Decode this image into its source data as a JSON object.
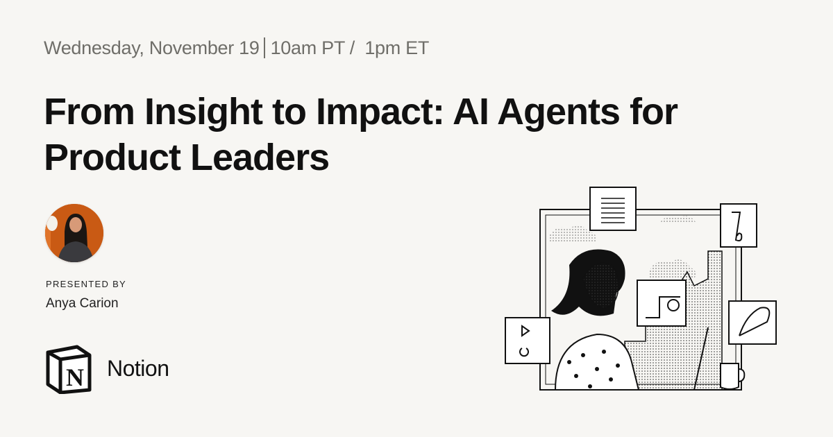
{
  "event": {
    "date": "Wednesday, November 19",
    "time": "10am PT /  1pm ET"
  },
  "title": "From Insight to Impact: AI Agents for Product Leaders",
  "presenter": {
    "label": "PRESENTED BY",
    "name": "Anya Carion"
  },
  "brand": {
    "name": "Notion",
    "logo_letter": "N"
  },
  "colors": {
    "background": "#f7f6f3",
    "date_text": "#6f6e69",
    "avatar_bg": "#c95a14"
  }
}
